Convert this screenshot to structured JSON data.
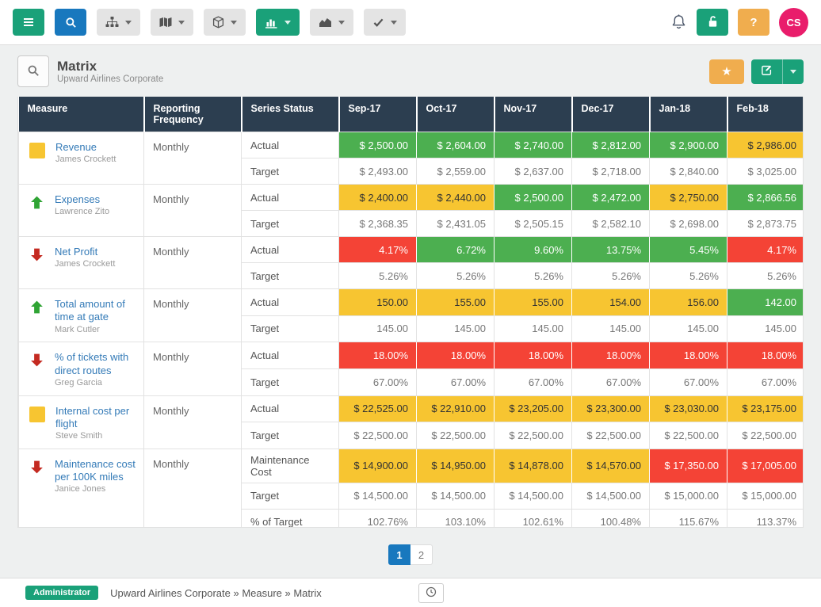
{
  "colors": {
    "teal_button": "#1AA179",
    "blue_button": "#1878BE",
    "orange_button": "#F0AD4E",
    "avatar_pink": "#E91D6B",
    "header_navy": "#2C3E50",
    "cell_green": "#4CAF50",
    "cell_yellow": "#F7C531",
    "cell_red": "#F44336",
    "link_blue": "#337AB7",
    "arrow_up_green": "#2FA434",
    "arrow_down_red": "#C42A21",
    "pagination_active": "#1878BE"
  },
  "toolbar": {
    "buttons": [
      {
        "id": "menu",
        "icon": "hamburger",
        "style": "green",
        "dropdown": false
      },
      {
        "id": "search",
        "icon": "search",
        "style": "blue",
        "dropdown": false
      },
      {
        "id": "hierarchy",
        "icon": "hierarchy",
        "style": "gray",
        "dropdown": true
      },
      {
        "id": "map",
        "icon": "map",
        "style": "gray",
        "dropdown": true
      },
      {
        "id": "cube",
        "icon": "cube",
        "style": "gray",
        "dropdown": true
      },
      {
        "id": "bar-chart",
        "icon": "bar-chart",
        "style": "green",
        "dropdown": true
      },
      {
        "id": "area-chart",
        "icon": "area-chart",
        "style": "gray",
        "dropdown": true
      },
      {
        "id": "check",
        "icon": "check",
        "style": "gray",
        "dropdown": true
      }
    ],
    "avatar_initials": "CS"
  },
  "page_header": {
    "title": "Matrix",
    "subtitle": "Upward Airlines Corporate"
  },
  "table": {
    "columns": [
      "Measure",
      "Reporting Frequency",
      "Series Status",
      "Sep-17",
      "Oct-17",
      "Nov-17",
      "Dec-17",
      "Jan-18",
      "Feb-18"
    ],
    "measures": [
      {
        "name": "Revenue",
        "owner": "James Crockett",
        "icon": "square-yellow",
        "frequency": "Monthly",
        "series": [
          {
            "label": "Actual",
            "values": [
              "$ 2,500.00",
              "$ 2,604.00",
              "$ 2,740.00",
              "$ 2,812.00",
              "$ 2,900.00",
              "$ 2,986.00"
            ],
            "colors": [
              "green",
              "green",
              "green",
              "green",
              "green",
              "yellow"
            ]
          },
          {
            "label": "Target",
            "values": [
              "$ 2,493.00",
              "$ 2,559.00",
              "$ 2,637.00",
              "$ 2,718.00",
              "$ 2,840.00",
              "$ 3,025.00"
            ],
            "colors": [
              "white",
              "white",
              "white",
              "white",
              "white",
              "white"
            ]
          }
        ]
      },
      {
        "name": "Expenses",
        "owner": "Lawrence Zito",
        "icon": "arrow-up-green",
        "frequency": "Monthly",
        "series": [
          {
            "label": "Actual",
            "values": [
              "$ 2,400.00",
              "$ 2,440.00",
              "$ 2,500.00",
              "$ 2,472.00",
              "$ 2,750.00",
              "$ 2,866.56"
            ],
            "colors": [
              "yellow",
              "yellow",
              "green",
              "green",
              "yellow",
              "green"
            ]
          },
          {
            "label": "Target",
            "values": [
              "$ 2,368.35",
              "$ 2,431.05",
              "$ 2,505.15",
              "$ 2,582.10",
              "$ 2,698.00",
              "$ 2,873.75"
            ],
            "colors": [
              "white",
              "white",
              "white",
              "white",
              "white",
              "white"
            ]
          }
        ]
      },
      {
        "name": "Net Profit",
        "owner": "James Crockett",
        "icon": "arrow-down-red",
        "frequency": "Monthly",
        "series": [
          {
            "label": "Actual",
            "values": [
              "4.17%",
              "6.72%",
              "9.60%",
              "13.75%",
              "5.45%",
              "4.17%"
            ],
            "colors": [
              "red",
              "green",
              "green",
              "green",
              "green",
              "red"
            ]
          },
          {
            "label": "Target",
            "values": [
              "5.26%",
              "5.26%",
              "5.26%",
              "5.26%",
              "5.26%",
              "5.26%"
            ],
            "colors": [
              "white",
              "white",
              "white",
              "white",
              "white",
              "white"
            ]
          }
        ]
      },
      {
        "name": "Total amount of time at gate",
        "owner": "Mark Cutler",
        "icon": "arrow-up-green",
        "frequency": "Monthly",
        "series": [
          {
            "label": "Actual",
            "values": [
              "150.00",
              "155.00",
              "155.00",
              "154.00",
              "156.00",
              "142.00"
            ],
            "colors": [
              "yellow",
              "yellow",
              "yellow",
              "yellow",
              "yellow",
              "green"
            ]
          },
          {
            "label": "Target",
            "values": [
              "145.00",
              "145.00",
              "145.00",
              "145.00",
              "145.00",
              "145.00"
            ],
            "colors": [
              "white",
              "white",
              "white",
              "white",
              "white",
              "white"
            ]
          }
        ]
      },
      {
        "name": "% of tickets with direct routes",
        "owner": "Greg Garcia",
        "icon": "arrow-down-red",
        "frequency": "Monthly",
        "series": [
          {
            "label": "Actual",
            "values": [
              "18.00%",
              "18.00%",
              "18.00%",
              "18.00%",
              "18.00%",
              "18.00%"
            ],
            "colors": [
              "red",
              "red",
              "red",
              "red",
              "red",
              "red"
            ]
          },
          {
            "label": "Target",
            "values": [
              "67.00%",
              "67.00%",
              "67.00%",
              "67.00%",
              "67.00%",
              "67.00%"
            ],
            "colors": [
              "white",
              "white",
              "white",
              "white",
              "white",
              "white"
            ]
          }
        ]
      },
      {
        "name": "Internal cost per flight",
        "owner": "Steve Smith",
        "icon": "square-yellow",
        "frequency": "Monthly",
        "series": [
          {
            "label": "Actual",
            "values": [
              "$ 22,525.00",
              "$ 22,910.00",
              "$ 23,205.00",
              "$ 23,300.00",
              "$ 23,030.00",
              "$ 23,175.00"
            ],
            "colors": [
              "yellow",
              "yellow",
              "yellow",
              "yellow",
              "yellow",
              "yellow"
            ]
          },
          {
            "label": "Target",
            "values": [
              "$ 22,500.00",
              "$ 22,500.00",
              "$ 22,500.00",
              "$ 22,500.00",
              "$ 22,500.00",
              "$ 22,500.00"
            ],
            "colors": [
              "white",
              "white",
              "white",
              "white",
              "white",
              "white"
            ]
          }
        ]
      },
      {
        "name": "Maintenance cost per 100K miles",
        "owner": "Janice Jones",
        "icon": "arrow-down-red",
        "frequency": "Monthly",
        "series": [
          {
            "label": "Maintenance Cost",
            "values": [
              "$ 14,900.00",
              "$ 14,950.00",
              "$ 14,878.00",
              "$ 14,570.00",
              "$ 17,350.00",
              "$ 17,005.00"
            ],
            "colors": [
              "yellow",
              "yellow",
              "yellow",
              "yellow",
              "red",
              "red"
            ]
          },
          {
            "label": "Target",
            "values": [
              "$ 14,500.00",
              "$ 14,500.00",
              "$ 14,500.00",
              "$ 14,500.00",
              "$ 15,000.00",
              "$ 15,000.00"
            ],
            "colors": [
              "white",
              "white",
              "white",
              "white",
              "white",
              "white"
            ]
          },
          {
            "label": "% of Target",
            "values": [
              "102.76%",
              "103.10%",
              "102.61%",
              "100.48%",
              "115.67%",
              "113.37%"
            ],
            "colors": [
              "white",
              "white",
              "white",
              "white",
              "white",
              "white"
            ]
          }
        ]
      }
    ],
    "partial_row_colors": [
      "green",
      "green",
      "green",
      "green",
      "red",
      "red"
    ]
  },
  "pagination": {
    "pages": [
      "1",
      "2"
    ],
    "active_index": 0
  },
  "footer": {
    "badge": "Administrator",
    "breadcrumb": "Upward Airlines Corporate » Measure » Matrix"
  }
}
